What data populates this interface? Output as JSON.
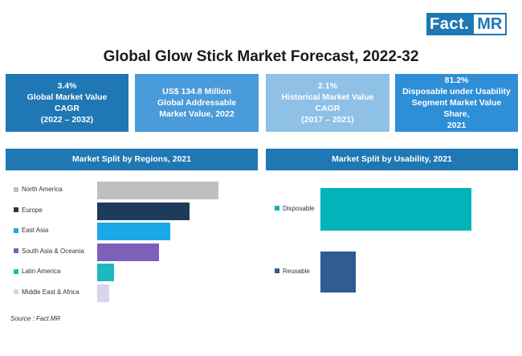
{
  "logo": {
    "fact": "Fact.",
    "mr": "MR"
  },
  "title": "Global Glow Stick Market Forecast, 2022-32",
  "kpis": [
    {
      "lines": [
        "3.4%",
        "Global Market Value",
        "CAGR",
        "(2022 – 2032)"
      ],
      "color": "#1f77b4"
    },
    {
      "lines": [
        "US$ 134.8 Million",
        "Global Addressable",
        "Market Value, 2022"
      ],
      "color": "#4a9bd9"
    },
    {
      "lines": [
        "2.1%",
        "Historical Market Value",
        "CAGR",
        "(2017 – 2021)"
      ],
      "color": "#8fc0e6"
    },
    {
      "lines": [
        "81.2%",
        "Disposable under Usability",
        "Segment Market Value Share,",
        "2021"
      ],
      "color": "#2e8fd6"
    }
  ],
  "source": "Source : Fact.MR",
  "chart_data": [
    {
      "type": "bar",
      "orientation": "horizontal",
      "title": "Market Split by Regions, 2021",
      "categories": [
        "North America",
        "Europe",
        "East Asia",
        "South Asia & Oceania",
        "Latin America",
        "Middle East & Africa"
      ],
      "values": [
        100,
        76,
        60,
        51,
        14,
        10
      ],
      "colors": [
        "#bfbfbf",
        "#1f3b5c",
        "#18a9e6",
        "#7d60ba",
        "#1fb8c0",
        "#d9d4ec"
      ],
      "xlim": [
        0,
        100
      ],
      "legend": "left"
    },
    {
      "type": "bar",
      "orientation": "vertical",
      "title": "Market Split by Usability, 2021",
      "categories": [
        "Disposable",
        "Reusable"
      ],
      "values": [
        81.2,
        18.8
      ],
      "colors": [
        "#00b4b9",
        "#2f5c91"
      ],
      "ylim": [
        0,
        100
      ],
      "legend": "left"
    }
  ]
}
